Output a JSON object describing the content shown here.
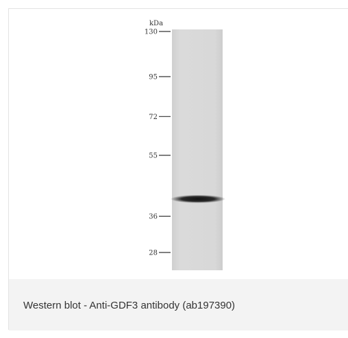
{
  "unit_label": "kDa",
  "markers": [
    {
      "label": "130",
      "kda": 130
    },
    {
      "label": "95",
      "kda": 95
    },
    {
      "label": "72",
      "kda": 72
    },
    {
      "label": "55",
      "kda": 55
    },
    {
      "label": "36",
      "kda": 36
    },
    {
      "label": "28",
      "kda": 28
    }
  ],
  "band_kda": 38,
  "caption": "Western blot - Anti-GDF3 antibody (ab197390)",
  "colors": {
    "lane": "#d6d6d6",
    "band": "#1e1e1e",
    "caption_bg": "#f3f3f3",
    "border": "#e3e3e3"
  }
}
